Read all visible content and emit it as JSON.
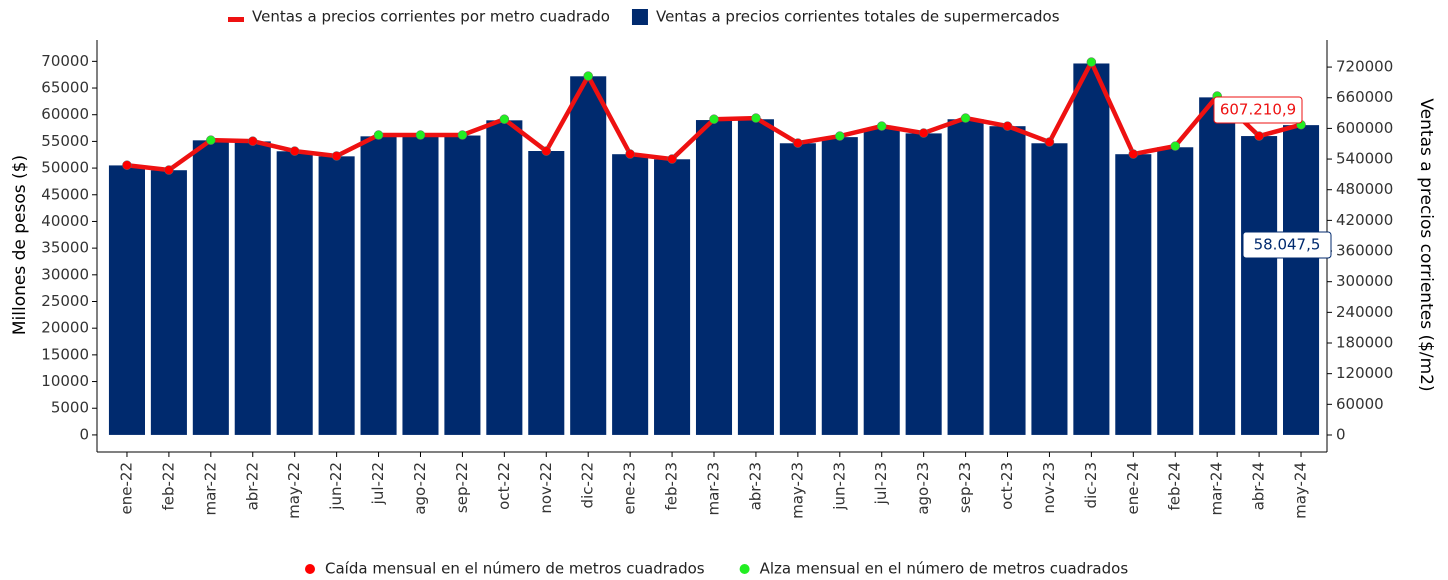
{
  "chart_data": {
    "type": "bar_line",
    "y_label": "Millones de pesos ($)",
    "y2_label": "Ventas a precios corrientes ($/m2)",
    "categories": [
      "ene-22",
      "feb-22",
      "mar-22",
      "abr-22",
      "may-22",
      "jun-22",
      "jul-22",
      "ago-22",
      "sep-22",
      "oct-22",
      "nov-22",
      "dic-22",
      "ene-23",
      "feb-23",
      "mar-23",
      "abr-23",
      "may-23",
      "jun-23",
      "jul-23",
      "ago-23",
      "sep-23",
      "oct-23",
      "nov-23",
      "dic-23",
      "ene-24",
      "feb-24",
      "mar-24",
      "abr-24",
      "may-24"
    ],
    "series": [
      {
        "name": "Ventas a precios corrientes totales de supermercados",
        "color": "#002a6e",
        "kind": "bar",
        "axis": "y",
        "values": [
          50500,
          49600,
          55200,
          55000,
          53150,
          52200,
          55950,
          56000,
          56100,
          58950,
          53200,
          67200,
          52600,
          51650,
          59000,
          59150,
          54650,
          55800,
          57450,
          56500,
          59150,
          57850,
          54650,
          69600,
          52600,
          53900,
          63250,
          56000,
          58047.5
        ],
        "value_labels": [
          null,
          null,
          null,
          null,
          null,
          null,
          null,
          null,
          null,
          null,
          null,
          null,
          null,
          null,
          null,
          null,
          null,
          null,
          null,
          null,
          null,
          null,
          null,
          null,
          null,
          null,
          null,
          null,
          "58.047,5"
        ]
      },
      {
        "name": "Ventas a precios corrientes por metro cuadrado",
        "color": "#ee1111",
        "kind": "line",
        "axis": "y2",
        "values": [
          528000,
          518500,
          577000,
          575000,
          555600,
          546000,
          587000,
          587000,
          587000,
          618000,
          555600,
          702400,
          549800,
          540000,
          618000,
          620200,
          571300,
          585000,
          604500,
          590900,
          620200,
          604500,
          573300,
          729800,
          549800,
          565400,
          663300,
          585000,
          607210.9
        ],
        "value_labels": [
          null,
          null,
          null,
          null,
          null,
          null,
          null,
          null,
          null,
          null,
          null,
          null,
          null,
          null,
          null,
          null,
          null,
          null,
          null,
          null,
          null,
          null,
          null,
          null,
          null,
          null,
          null,
          null,
          "607.210,9"
        ],
        "point_colors": [
          "#ff0000",
          "#ff0000",
          "#22ee22",
          "#ff0000",
          "#ff0000",
          "#ff0000",
          "#22ee22",
          "#22ee22",
          "#22ee22",
          "#22ee22",
          "#ff0000",
          "#22ee22",
          "#ff0000",
          "#ff0000",
          "#22ee22",
          "#22ee22",
          "#ff0000",
          "#22ee22",
          "#22ee22",
          "#ff0000",
          "#22ee22",
          "#ff0000",
          "#ff0000",
          "#22ee22",
          "#ff0000",
          "#22ee22",
          "#22ee22",
          "#ff0000",
          "#22ee22"
        ]
      }
    ],
    "point_legend": [
      {
        "name": "Caída mensual en el número de metros cuadrados",
        "color": "#ff0000"
      },
      {
        "name": "Alza mensual en el número de metros cuadrados",
        "color": "#22ee22"
      }
    ],
    "ylim": [
      -3200,
      74000
    ],
    "yticks": [
      0,
      5000,
      10000,
      15000,
      20000,
      25000,
      30000,
      35000,
      40000,
      45000,
      50000,
      55000,
      60000,
      65000,
      70000
    ],
    "y2lim": [
      -33300,
      773000
    ],
    "y2ticks": [
      0,
      60000,
      120000,
      180000,
      240000,
      300000,
      360000,
      420000,
      480000,
      540000,
      600000,
      660000,
      720000
    ]
  }
}
